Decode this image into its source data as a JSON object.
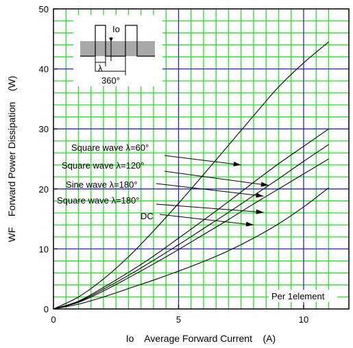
{
  "chart_data": {
    "type": "line",
    "xlabel": "Io    Average Forward Current    (A)",
    "ylabel": "WF    Forward Power Dissipation    (W)",
    "xlim": [
      0,
      11.5
    ],
    "ylim": [
      0,
      50
    ],
    "x_ticks": [
      "0",
      "5",
      "10"
    ],
    "y_ticks": [
      "0",
      "10",
      "20",
      "30",
      "40",
      "50"
    ],
    "grid": true,
    "colors": {
      "minor_grid": "#22e022",
      "major_grid": "#2222cc",
      "curve": "#000000",
      "inset_band": "#a8a8a8"
    },
    "series": [
      {
        "name": "Square wave λ=60°",
        "x": [
          0,
          1,
          2,
          3,
          4,
          5,
          6,
          7,
          8,
          9,
          10,
          11
        ],
        "y": [
          0,
          2.0,
          5.0,
          8.7,
          13.0,
          17.6,
          22.4,
          27.3,
          32.2,
          37.0,
          41.0,
          44.5
        ]
      },
      {
        "name": "Square wave λ=120°",
        "x": [
          0,
          1,
          2,
          3,
          4,
          5,
          6,
          7,
          8,
          9,
          10,
          11
        ],
        "y": [
          0,
          1.3,
          3.6,
          6.1,
          8.8,
          11.8,
          14.8,
          17.9,
          21.1,
          24.2,
          27.1,
          30.0
        ]
      },
      {
        "name": "Sine wave λ=180°",
        "x": [
          0,
          1,
          2,
          3,
          4,
          5,
          6,
          7,
          8,
          9,
          10,
          11
        ],
        "y": [
          0,
          1.2,
          3.3,
          5.6,
          8.1,
          10.7,
          13.4,
          16.1,
          18.9,
          21.7,
          24.6,
          27.4
        ]
      },
      {
        "name": "Square wave λ=180°",
        "x": [
          0,
          1,
          2,
          3,
          4,
          5,
          6,
          7,
          8,
          9,
          10,
          11
        ],
        "y": [
          0,
          1.1,
          3.0,
          5.2,
          7.5,
          9.9,
          12.4,
          14.9,
          17.5,
          20.0,
          22.5,
          25.0
        ]
      },
      {
        "name": "DC",
        "x": [
          0,
          1,
          2,
          3,
          4,
          5,
          6,
          7,
          8,
          9,
          10,
          11
        ],
        "y": [
          0,
          0.8,
          2.0,
          3.4,
          4.8,
          6.3,
          7.9,
          9.7,
          11.8,
          14.2,
          17.0,
          20.2
        ]
      }
    ],
    "annotations": [
      {
        "text": "Square wave λ=60°",
        "arrow_to": [
          7.5,
          24.0
        ]
      },
      {
        "text": "Square wave λ=120°",
        "arrow_to": [
          8.6,
          20.6
        ]
      },
      {
        "text": "Sine wave λ=180°",
        "arrow_to": [
          8.4,
          18.8
        ]
      },
      {
        "text": "Square wave λ=180°",
        "arrow_to": [
          8.4,
          16.1
        ]
      },
      {
        "text": "DC",
        "arrow_to": [
          8.0,
          14.0
        ]
      }
    ],
    "note": "Per 1element",
    "inset": {
      "io_label": "Io",
      "lambda_label": "λ",
      "period_label": "360°"
    }
  }
}
